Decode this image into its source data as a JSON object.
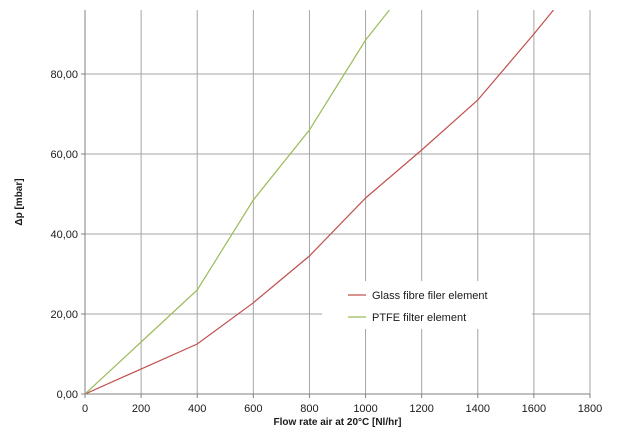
{
  "chart_data": {
    "type": "line",
    "xlabel": "Flow rate air at 20°C [Nl/hr]",
    "ylabel": "Δp [mbar]",
    "xlim": [
      0,
      1800
    ],
    "ylim": [
      0,
      96
    ],
    "x_ticks": [
      "0",
      "200",
      "400",
      "600",
      "800",
      "1000",
      "1200",
      "1400",
      "1600",
      "1800"
    ],
    "y_ticks": [
      "0,00",
      "20,00",
      "40,00",
      "60,00",
      "80,00"
    ],
    "grid": true,
    "legend_position": "lower-right",
    "series": [
      {
        "name": "Glass fibre filer element",
        "color": "#c0504d",
        "x": [
          0,
          400,
          600,
          800,
          1000,
          1200,
          1400,
          1600,
          1670
        ],
        "y": [
          0,
          12.5,
          22.8,
          34.5,
          49,
          61,
          73.5,
          90,
          96
        ]
      },
      {
        "name": "PTFE filter element",
        "color": "#9bbb59",
        "x": [
          0,
          200,
          400,
          600,
          800,
          1000,
          1085
        ],
        "y": [
          0,
          13,
          26,
          48.5,
          66,
          88.5,
          96
        ]
      }
    ]
  }
}
